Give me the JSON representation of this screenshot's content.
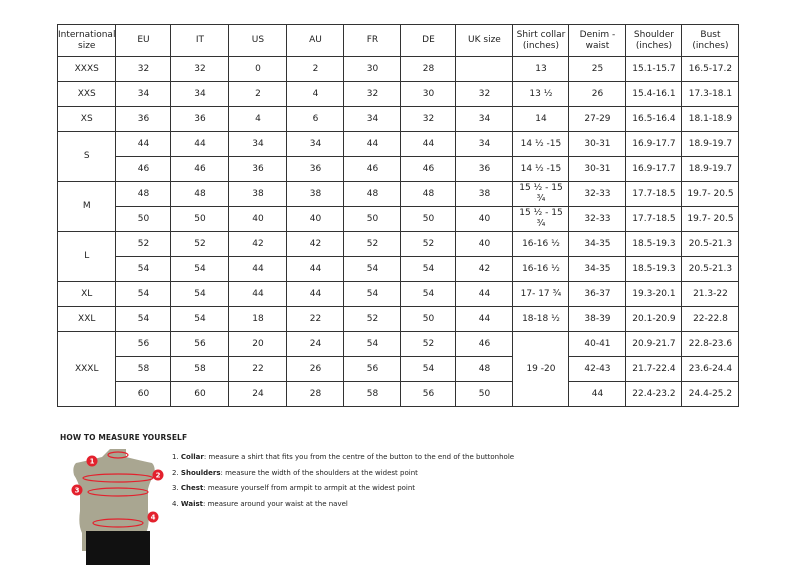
{
  "table": {
    "headers": [
      "International size",
      "EU",
      "IT",
      "US",
      "AU",
      "FR",
      "DE",
      "UK size",
      "Shirt collar (inches)",
      "Denim - waist",
      "Shoulder (inches)",
      "Bust (inches)"
    ],
    "groups": [
      {
        "size": "XXXS",
        "rows": [
          [
            "32",
            "32",
            "0",
            "2",
            "30",
            "28",
            "",
            "13",
            "25",
            "15.1-15.7",
            "16.5-17.2"
          ]
        ]
      },
      {
        "size": "XXS",
        "rows": [
          [
            "34",
            "34",
            "2",
            "4",
            "32",
            "30",
            "32",
            "13 ½",
            "26",
            "15.4-16.1",
            "17.3-18.1"
          ]
        ]
      },
      {
        "size": "XS",
        "rows": [
          [
            "36",
            "36",
            "4",
            "6",
            "34",
            "32",
            "34",
            "14",
            "27-29",
            "16.5-16.4",
            "18.1-18.9"
          ]
        ]
      },
      {
        "size": "S",
        "rows": [
          [
            "44",
            "44",
            "34",
            "34",
            "44",
            "44",
            "34",
            "14 ½ -15",
            "30-31",
            "16.9-17.7",
            "18.9-19.7"
          ],
          [
            "46",
            "46",
            "36",
            "36",
            "46",
            "46",
            "36",
            "14 ½ -15",
            "30-31",
            "16.9-17.7",
            "18.9-19.7"
          ]
        ]
      },
      {
        "size": "M",
        "rows": [
          [
            "48",
            "48",
            "38",
            "38",
            "48",
            "48",
            "38",
            "15 ½ - 15 ¾",
            "32-33",
            "17.7-18.5",
            "19.7- 20.5"
          ],
          [
            "50",
            "50",
            "40",
            "40",
            "50",
            "50",
            "40",
            "15 ½ - 15 ¾",
            "32-33",
            "17.7-18.5",
            "19.7- 20.5"
          ]
        ]
      },
      {
        "size": "L",
        "rows": [
          [
            "52",
            "52",
            "42",
            "42",
            "52",
            "52",
            "40",
            "16-16 ½",
            "34-35",
            "18.5-19.3",
            "20.5-21.3"
          ],
          [
            "54",
            "54",
            "44",
            "44",
            "54",
            "54",
            "42",
            "16-16 ½",
            "34-35",
            "18.5-19.3",
            "20.5-21.3"
          ]
        ]
      },
      {
        "size": "XL",
        "rows": [
          [
            "54",
            "54",
            "44",
            "44",
            "54",
            "54",
            "44",
            "17- 17 ¾",
            "36-37",
            "19.3-20.1",
            "21.3-22"
          ]
        ]
      },
      {
        "size": "XXL",
        "rows": [
          [
            "54",
            "54",
            "18",
            "22",
            "52",
            "50",
            "44",
            "18-18 ½",
            "38-39",
            "20.1-20.9",
            "22-22.8"
          ]
        ]
      },
      {
        "size": "XXXL",
        "collar_merged": "19 -20",
        "rows": [
          [
            "56",
            "56",
            "20",
            "24",
            "54",
            "52",
            "46",
            null,
            "40-41",
            "20.9-21.7",
            "22.8-23.6"
          ],
          [
            "58",
            "58",
            "22",
            "26",
            "56",
            "54",
            "48",
            null,
            "42-43",
            "21.7-22.4",
            "23.6-24.4"
          ],
          [
            "60",
            "60",
            "24",
            "28",
            "58",
            "56",
            "50",
            null,
            "44",
            "22.4-23.2",
            "24.4-25.2"
          ]
        ]
      }
    ]
  },
  "guide": {
    "title": "HOW TO MEASURE YOURSELF",
    "steps": [
      {
        "num": "1.",
        "term": "Collar",
        "text": ": measure a shirt that fits you from the centre of the button to the end of the buttonhole"
      },
      {
        "num": "2.",
        "term": "Shoulders",
        "text": ": measure the width of the shoulders at the widest point"
      },
      {
        "num": "3.",
        "term": "Chest",
        "text": ": measure yourself from armpit to armpit at the widest point"
      },
      {
        "num": "4.",
        "term": "Waist",
        "text": ": measure around your waist at the navel"
      }
    ],
    "markers": [
      "1",
      "2",
      "3",
      "4"
    ],
    "accent": "#e3212d"
  }
}
